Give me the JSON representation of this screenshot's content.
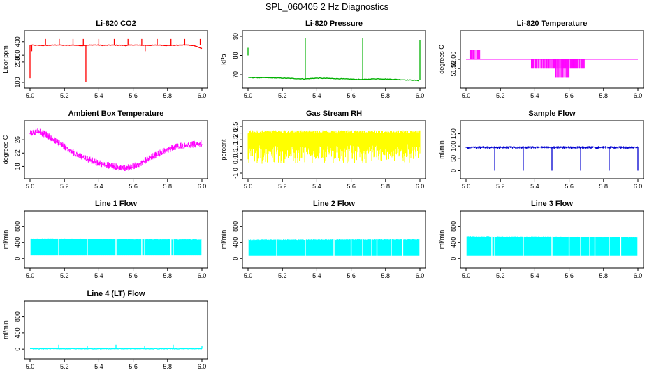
{
  "figure": {
    "title": "SPL_060405  2 Hz Diagnostics"
  },
  "chart_data": [
    {
      "id": "li820-co2",
      "type": "line",
      "title": "Li-820 CO2",
      "xlabel": "",
      "ylabel": "Licor ppm",
      "xlim": [
        5.0,
        6.0
      ],
      "ylim": [
        100,
        440
      ],
      "xticks": [
        "5.0",
        "5.2",
        "5.4",
        "5.6",
        "5.8",
        "6.0"
      ],
      "yticks": [
        100,
        250,
        300,
        400
      ],
      "yticklabels": [
        "100",
        "250",
        "300",
        "400"
      ],
      "color": "#ff0000",
      "series": [
        {
          "name": "CO2",
          "x": [
            5.0,
            5.08,
            5.12,
            5.16,
            5.2,
            5.25,
            5.3,
            5.33,
            5.38,
            5.42,
            5.47,
            5.52,
            5.56,
            5.6,
            5.65,
            5.7,
            5.75,
            5.8,
            5.85,
            5.9,
            5.95,
            6.0
          ],
          "values": [
            375,
            372,
            374,
            376,
            373,
            375,
            372,
            374,
            376,
            373,
            375,
            374,
            372,
            376,
            374,
            373,
            375,
            372,
            374,
            376,
            373,
            350
          ]
        }
      ],
      "spikes": [
        {
          "x": 5.0,
          "base": 375,
          "peak": 130
        },
        {
          "x": 5.01,
          "base": 375,
          "peak": 330
        },
        {
          "x": 5.09,
          "base": 375,
          "peak": 420
        },
        {
          "x": 5.17,
          "base": 375,
          "peak": 420
        },
        {
          "x": 5.25,
          "base": 375,
          "peak": 420
        },
        {
          "x": 5.31,
          "base": 375,
          "peak": 420
        },
        {
          "x": 5.325,
          "base": 375,
          "peak": 100
        },
        {
          "x": 5.4,
          "base": 375,
          "peak": 420
        },
        {
          "x": 5.49,
          "base": 375,
          "peak": 420
        },
        {
          "x": 5.57,
          "base": 375,
          "peak": 420
        },
        {
          "x": 5.65,
          "base": 375,
          "peak": 420
        },
        {
          "x": 5.67,
          "base": 375,
          "peak": 330
        },
        {
          "x": 5.74,
          "base": 375,
          "peak": 420
        },
        {
          "x": 5.82,
          "base": 375,
          "peak": 420
        },
        {
          "x": 5.9,
          "base": 375,
          "peak": 420
        },
        {
          "x": 5.99,
          "base": 375,
          "peak": 420
        }
      ]
    },
    {
      "id": "li820-pressure",
      "type": "line",
      "title": "Li-820 Pressure",
      "xlabel": "",
      "ylabel": "kPa",
      "xlim": [
        5.0,
        6.0
      ],
      "ylim": [
        66,
        90
      ],
      "xticks": [
        "5.0",
        "5.2",
        "5.4",
        "5.6",
        "5.8",
        "6.0"
      ],
      "yticks": [
        70,
        80,
        90
      ],
      "yticklabels": [
        "70",
        "80",
        "90"
      ],
      "color": "#00b000",
      "series": [
        {
          "name": "Pressure",
          "x": [
            5.0,
            5.1,
            5.2,
            5.33,
            5.4,
            5.5,
            5.667,
            5.75,
            5.85,
            6.0
          ],
          "values": [
            68.5,
            68.4,
            68.2,
            67.8,
            68.2,
            68.0,
            67.5,
            67.9,
            67.6,
            67.0
          ]
        }
      ],
      "spikes": [
        {
          "x": 5.0,
          "base": 80,
          "peak": 84
        },
        {
          "x": 5.333,
          "base": 68,
          "peak": 89
        },
        {
          "x": 5.667,
          "base": 67.8,
          "peak": 89
        },
        {
          "x": 5.668,
          "base": 67.8,
          "peak": 87
        },
        {
          "x": 6.0,
          "base": 67.2,
          "peak": 88
        }
      ]
    },
    {
      "id": "li820-temperature",
      "type": "line",
      "title": "Li-820 Temperature",
      "xlabel": "",
      "ylabel": "degrees C",
      "xlim": [
        5.0,
        6.0
      ],
      "ylim": [
        51.95,
        52.05
      ],
      "xticks": [
        "5.0",
        "5.2",
        "5.4",
        "5.6",
        "5.8",
        "6.0"
      ],
      "yticks": [
        51.98,
        52.0
      ],
      "yticklabels": [
        "51.98",
        "52.00"
      ],
      "color": "#ff00ff",
      "series": [
        {
          "name": "Temperature",
          "x": [
            5.0,
            6.0
          ],
          "values": [
            52.0,
            52.0
          ]
        }
      ],
      "step_regions": [
        {
          "x_start": 5.02,
          "x_end": 5.08,
          "level": 52.02
        },
        {
          "x_start": 5.38,
          "x_end": 5.69,
          "level": 51.98
        },
        {
          "x_start": 5.52,
          "x_end": 5.6,
          "level": 51.96
        }
      ]
    },
    {
      "id": "ambient-box-temperature",
      "type": "line",
      "title": "Ambient Box Temperature",
      "xlabel": "",
      "ylabel": "degrees C",
      "xlim": [
        5.0,
        6.0
      ],
      "ylim": [
        16,
        30
      ],
      "xticks": [
        "5.0",
        "5.2",
        "5.4",
        "5.6",
        "5.8",
        "6.0"
      ],
      "yticks": [
        18,
        22,
        26
      ],
      "yticklabels": [
        "18",
        "22",
        "26"
      ],
      "color": "#ff00ff",
      "noise_band": 1.5,
      "series": [
        {
          "name": "Box Temperature",
          "x": [
            5.0,
            5.05,
            5.1,
            5.15,
            5.2,
            5.25,
            5.3,
            5.35,
            5.4,
            5.45,
            5.5,
            5.55,
            5.6,
            5.65,
            5.7,
            5.75,
            5.8,
            5.85,
            5.9,
            5.95,
            6.0
          ],
          "values": [
            28.0,
            28.5,
            27.3,
            25.6,
            23.9,
            22.3,
            21.0,
            19.9,
            19.0,
            18.4,
            17.9,
            17.5,
            18.0,
            19.2,
            20.6,
            21.9,
            23.0,
            24.0,
            24.4,
            24.6,
            24.9
          ]
        }
      ]
    },
    {
      "id": "gas-stream-rh",
      "type": "line",
      "title": "Gas Stream RH",
      "xlabel": "",
      "ylabel": "percent",
      "xlim": [
        5.0,
        6.0
      ],
      "ylim": [
        -1.0,
        2.5
      ],
      "xticks": [
        "5.0",
        "5.2",
        "5.4",
        "5.6",
        "5.8",
        "6.0"
      ],
      "yticks": [
        -1.0,
        0.0,
        0.5,
        1.0,
        1.5,
        2.0,
        2.5
      ],
      "yticklabels": [
        "-1.0",
        "0.0",
        "0.5",
        "1.0",
        "1.5",
        "2.0",
        "2.5"
      ],
      "color": "#ffff00",
      "band_upper": 2.2,
      "band_lower": 0.5,
      "band_min": -0.3,
      "series": [
        {
          "name": "RH",
          "x": [
            5.0,
            6.0
          ],
          "values": [
            1.4,
            1.4
          ]
        }
      ]
    },
    {
      "id": "sample-flow",
      "type": "line",
      "title": "Sample Flow",
      "xlabel": "",
      "ylabel": "ml/min",
      "xlim": [
        5.0,
        6.0
      ],
      "ylim": [
        -10,
        180
      ],
      "xticks": [
        "5.0",
        "5.2",
        "5.4",
        "5.6",
        "5.8",
        "6.0"
      ],
      "yticks": [
        0,
        50,
        100,
        150
      ],
      "yticklabels": [
        "0",
        "50",
        "100",
        "150"
      ],
      "color": "#0000d0",
      "base_level": 95,
      "noise_band": 10,
      "series": [
        {
          "name": "Sample Flow",
          "x": [
            5.0,
            6.0
          ],
          "values": [
            95,
            95
          ]
        }
      ],
      "spikes": [
        {
          "x": 5.167,
          "base": 95,
          "peak": 0
        },
        {
          "x": 5.333,
          "base": 95,
          "peak": 0
        },
        {
          "x": 5.5,
          "base": 95,
          "peak": 0
        },
        {
          "x": 5.667,
          "base": 95,
          "peak": 0
        },
        {
          "x": 5.833,
          "base": 95,
          "peak": 0
        },
        {
          "x": 6.0,
          "base": 95,
          "peak": 0
        }
      ]
    },
    {
      "id": "line-1-flow",
      "type": "area",
      "title": "Line 1 Flow",
      "xlabel": "",
      "ylabel": "ml/min",
      "xlim": [
        5.0,
        6.0
      ],
      "ylim": [
        -100,
        1050
      ],
      "xticks": [
        "5.0",
        "5.2",
        "5.4",
        "5.6",
        "5.8",
        "6.0"
      ],
      "yticks": [
        0,
        400,
        800
      ],
      "yticklabels": [
        "0",
        "400",
        "800"
      ],
      "color": "#00ffff",
      "band_upper": 500,
      "band_lower": 90,
      "gaps": [
        5.0,
        5.167,
        5.333,
        5.5,
        5.65,
        5.667,
        5.82,
        5.833,
        6.0
      ],
      "series": [
        {
          "name": "Line 1",
          "x": [
            5.0,
            6.0
          ],
          "values": [
            500,
            480
          ]
        }
      ]
    },
    {
      "id": "line-2-flow",
      "type": "area",
      "title": "Line 2 Flow",
      "xlabel": "",
      "ylabel": "ml/min",
      "xlim": [
        5.0,
        6.0
      ],
      "ylim": [
        -100,
        1050
      ],
      "xticks": [
        "5.0",
        "5.2",
        "5.4",
        "5.6",
        "5.8",
        "6.0"
      ],
      "yticks": [
        0,
        400,
        800
      ],
      "yticklabels": [
        "0",
        "400",
        "800"
      ],
      "color": "#00ffff",
      "band_upper": 470,
      "band_lower": 80,
      "gaps": [
        5.0,
        5.167,
        5.333,
        5.5,
        5.6,
        5.667,
        5.72,
        5.75,
        5.833,
        5.9,
        6.0
      ],
      "series": [
        {
          "name": "Line 2",
          "x": [
            5.0,
            6.0
          ],
          "values": [
            470,
            480
          ]
        }
      ]
    },
    {
      "id": "line-3-flow",
      "type": "area",
      "title": "Line 3 Flow",
      "xlabel": "",
      "ylabel": "ml/min",
      "xlim": [
        5.0,
        6.0
      ],
      "ylim": [
        -100,
        1050
      ],
      "xticks": [
        "5.0",
        "5.2",
        "5.4",
        "5.6",
        "5.8",
        "6.0"
      ],
      "yticks": [
        0,
        400,
        800
      ],
      "yticklabels": [
        "0",
        "400",
        "800"
      ],
      "color": "#00ffff",
      "band_upper": 560,
      "band_lower": 80,
      "gaps": [
        5.0,
        5.15,
        5.167,
        5.333,
        5.5,
        5.6,
        5.667,
        5.72,
        5.75,
        5.833,
        5.9,
        6.0
      ],
      "series": [
        {
          "name": "Line 3",
          "x": [
            5.0,
            6.0
          ],
          "values": [
            560,
            540
          ]
        }
      ]
    },
    {
      "id": "line-4-lt-flow",
      "type": "line",
      "title": "Line 4 (LT) Flow",
      "xlabel": "",
      "ylabel": "ml/min",
      "xlim": [
        5.0,
        6.0
      ],
      "ylim": [
        -100,
        1050
      ],
      "xticks": [
        "5.0",
        "5.2",
        "5.4",
        "5.6",
        "5.8",
        "6.0"
      ],
      "yticks": [
        0,
        400,
        800
      ],
      "yticklabels": [
        "0",
        "400",
        "800"
      ],
      "color": "#00ffff",
      "series": [
        {
          "name": "Line 4",
          "x": [
            5.0,
            6.0
          ],
          "values": [
            10,
            10
          ]
        }
      ],
      "spikes": [
        {
          "x": 5.167,
          "base": 10,
          "peak": 110
        },
        {
          "x": 5.333,
          "base": 10,
          "peak": 80
        },
        {
          "x": 5.5,
          "base": 10,
          "peak": 110
        },
        {
          "x": 5.667,
          "base": 10,
          "peak": 80
        },
        {
          "x": 5.833,
          "base": 10,
          "peak": 110
        },
        {
          "x": 6.0,
          "base": 10,
          "peak": 80
        }
      ]
    }
  ]
}
